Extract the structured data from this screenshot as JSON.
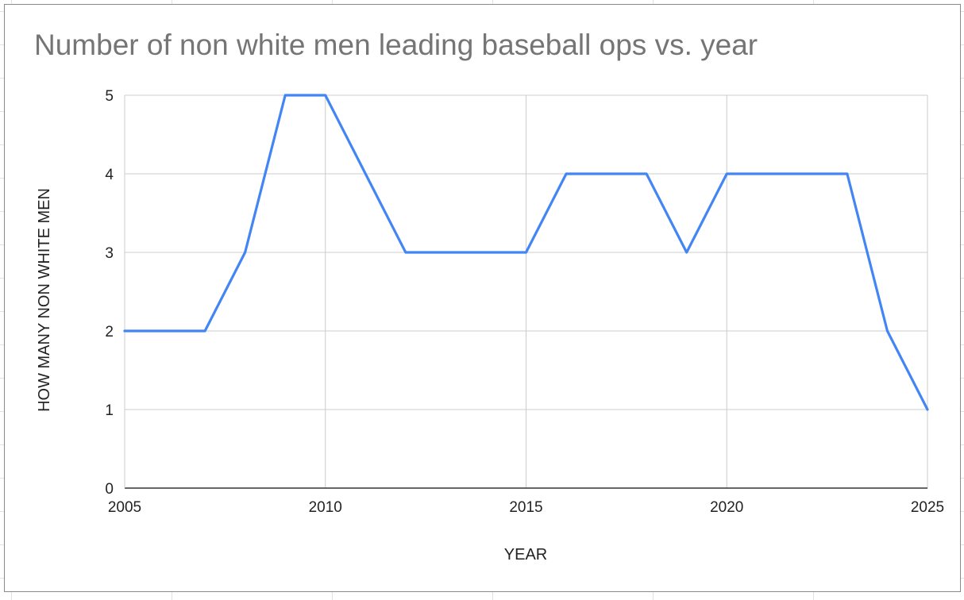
{
  "chart_data": {
    "type": "line",
    "title": "Number of non white men leading baseball ops vs. year",
    "xlabel": "YEAR",
    "ylabel": "HOW MANY NON WHITE MEN",
    "xlim": [
      2005,
      2025
    ],
    "ylim": [
      0,
      5
    ],
    "x_ticks": [
      2005,
      2010,
      2015,
      2020,
      2025
    ],
    "y_ticks": [
      0,
      1,
      2,
      3,
      4,
      5
    ],
    "grid": true,
    "legend": "none",
    "series": [
      {
        "color": "#4285f4",
        "x": [
          2005,
          2006,
          2007,
          2008,
          2009,
          2010,
          2011,
          2012,
          2013,
          2014,
          2015,
          2016,
          2017,
          2018,
          2019,
          2020,
          2021,
          2022,
          2023,
          2024,
          2025
        ],
        "values": [
          2,
          2,
          2,
          3,
          5,
          5,
          4,
          3,
          3,
          3,
          3,
          4,
          4,
          4,
          3,
          4,
          4,
          4,
          4,
          2,
          1
        ]
      }
    ]
  }
}
